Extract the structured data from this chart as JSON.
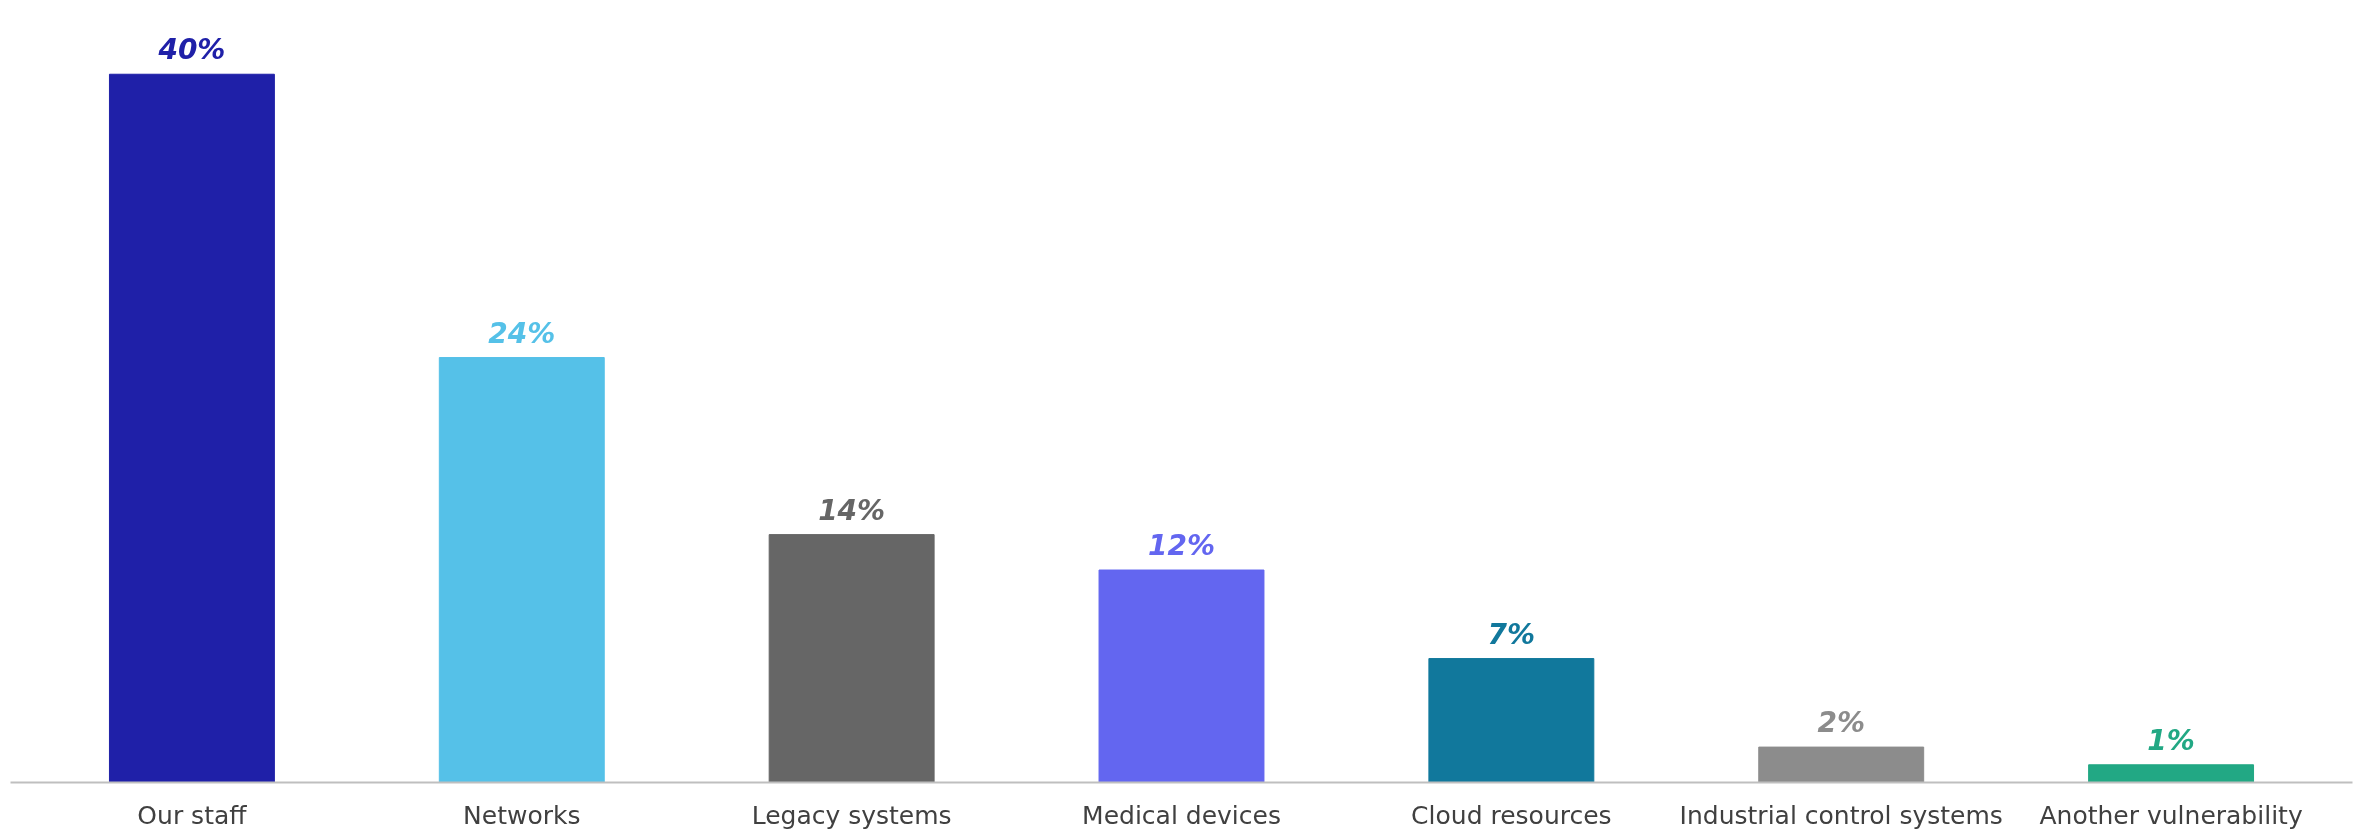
{
  "chart_data": {
    "type": "bar",
    "categories": [
      "Our staff",
      "Networks",
      "Legacy systems",
      "Medical devices",
      "Cloud resources",
      "Industrial control systems",
      "Another vulnerability"
    ],
    "values": [
      40,
      24,
      14,
      12,
      7,
      2,
      1
    ],
    "colors": [
      "#1f20a8",
      "#55c1e8",
      "#666666",
      "#6366f0",
      "#11789c",
      "#8c8c8c",
      "#22a884"
    ],
    "value_labels": [
      "40%",
      "24%",
      "14%",
      "12%",
      "7%",
      "2%",
      "1%"
    ],
    "grid": false
  }
}
